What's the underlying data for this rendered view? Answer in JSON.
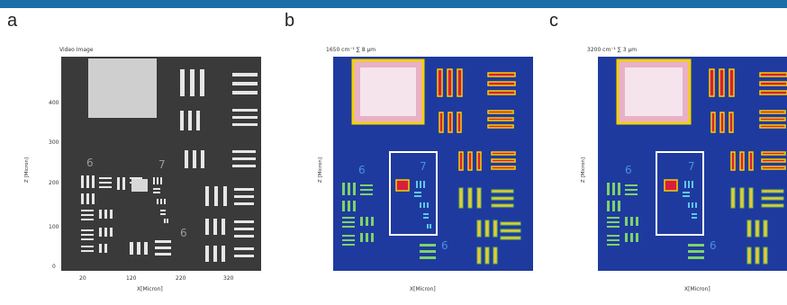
{
  "panels": {
    "a": {
      "letter": "a",
      "title": "Video Image",
      "ylabel": "Z [Micron]",
      "xlabel": "X[Micron]",
      "yticks": [
        "400",
        "300",
        "200",
        "100",
        "0"
      ],
      "xticks": [
        "20",
        "120",
        "220",
        "320"
      ],
      "group_labels": [
        "6",
        "7",
        "6"
      ]
    },
    "b": {
      "letter": "b",
      "title": "1650 cm⁻¹ ∑ 8 µm",
      "ylabel": "Z [Micron]",
      "xlabel": "X[Micron]",
      "group_labels": [
        "6",
        "7",
        "6"
      ]
    },
    "c": {
      "letter": "c",
      "title": "3200 cm⁻¹ ∑ 3 µm",
      "ylabel": "Z [Micron]",
      "xlabel": "X[Micron]",
      "group_labels": [
        "6",
        "7",
        "6"
      ]
    }
  },
  "colors": {
    "topbar": "#1b6fa8",
    "greyscale_bg": "#3a3a3a",
    "map_bg": "#1f3a9e",
    "highlight_box": "#ffffff"
  }
}
